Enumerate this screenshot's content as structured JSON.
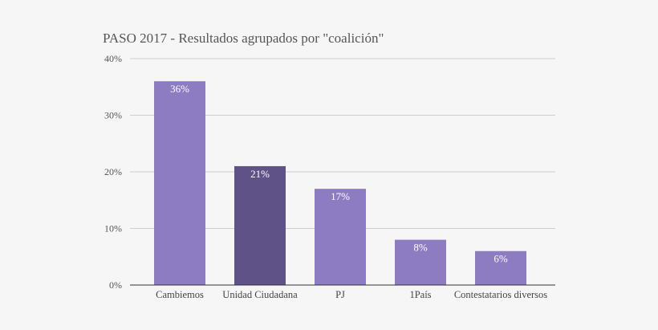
{
  "chart_data": {
    "type": "bar",
    "title": "PASO 2017 - Resultados agrupados por \"coalición\"",
    "xlabel": "",
    "ylabel": "",
    "ylim": [
      0,
      40
    ],
    "yticks": [
      0,
      10,
      20,
      30,
      40
    ],
    "ytick_labels": [
      "0%",
      "10%",
      "20%",
      "30%",
      "40%"
    ],
    "grid": true,
    "legend": "none",
    "categories": [
      "Cambiemos",
      "Unidad Ciudadana",
      "PJ",
      "1País",
      "Contestatarios diversos"
    ],
    "values": [
      36,
      21,
      17,
      8,
      6
    ],
    "data_labels": [
      "36%",
      "21%",
      "17%",
      "8%",
      "6%"
    ],
    "bar_colors": [
      "#8e7cc3",
      "#5f5287",
      "#8e7cc3",
      "#8e7cc3",
      "#8e7cc3"
    ]
  }
}
